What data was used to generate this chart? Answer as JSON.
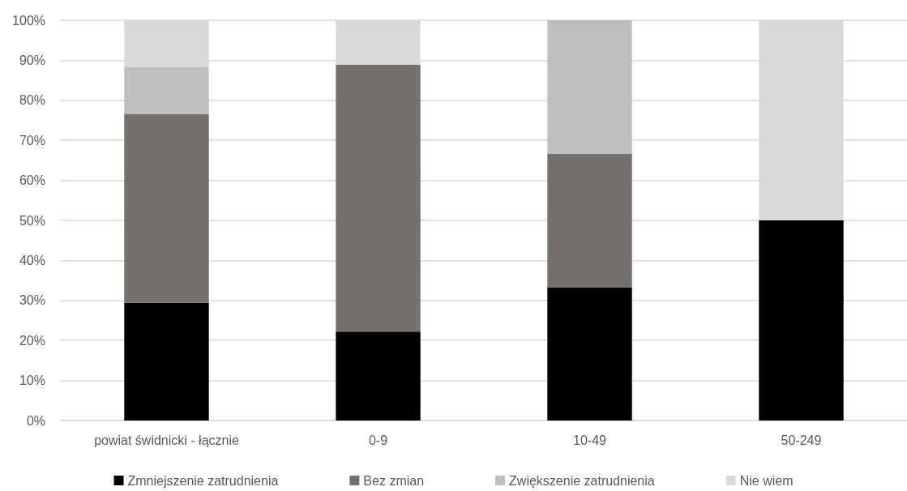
{
  "chart_data": {
    "type": "bar",
    "stacked": true,
    "categories": [
      "powiat świdnicki - łącznie",
      "0-9",
      "10-49",
      "50-249"
    ],
    "series": [
      {
        "name": "Zmniejszenie zatrudnienia",
        "color": "#000000",
        "values": [
          29.4,
          22.2,
          33.3,
          50
        ]
      },
      {
        "name": "Bez zmian",
        "color": "#757171",
        "values": [
          47.1,
          66.7,
          33.3,
          0
        ]
      },
      {
        "name": "Zwiększenie zatrudnienia",
        "color": "#bfbfbf",
        "values": [
          11.8,
          0,
          33.4,
          0
        ]
      },
      {
        "name": "Nie wiem",
        "color": "#d9d9d9",
        "values": [
          11.7,
          11.1,
          0,
          50
        ]
      }
    ],
    "ylim": [
      0,
      100
    ],
    "yticks": [
      {
        "value": 0,
        "label": "0%"
      },
      {
        "value": 10,
        "label": "10%"
      },
      {
        "value": 20,
        "label": "20%"
      },
      {
        "value": 30,
        "label": "30%"
      },
      {
        "value": 40,
        "label": "40%"
      },
      {
        "value": 50,
        "label": "50%"
      },
      {
        "value": 60,
        "label": "60%"
      },
      {
        "value": 70,
        "label": "70%"
      },
      {
        "value": 80,
        "label": "80%"
      },
      {
        "value": 90,
        "label": "90%"
      },
      {
        "value": 100,
        "label": "100%"
      }
    ],
    "grid": "y",
    "legend": "bottom"
  }
}
